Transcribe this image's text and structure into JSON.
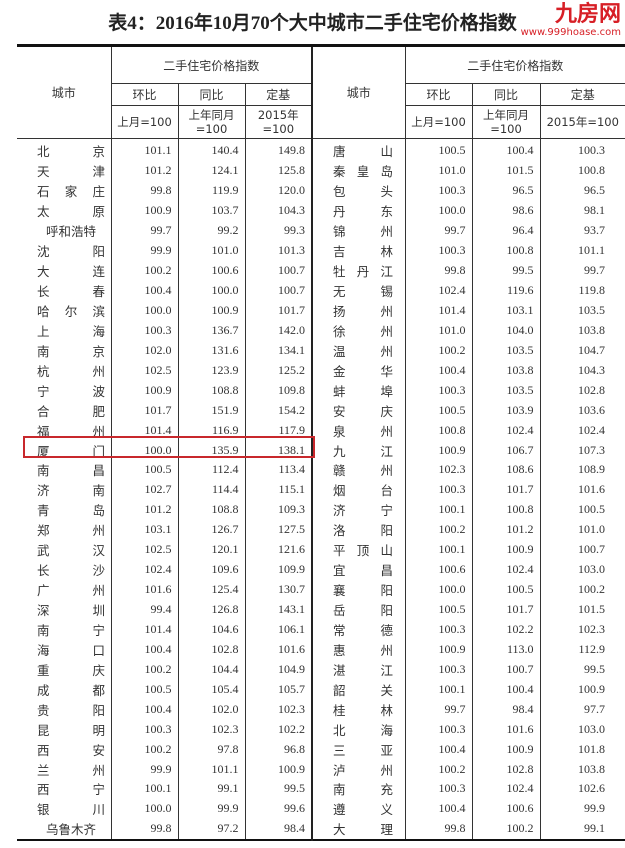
{
  "title": "表4：2016年10月70个大中城市二手住宅价格指数",
  "header": {
    "city": "城市",
    "group": "二手住宅价格指数",
    "cols": [
      "环比",
      "同比",
      "定基"
    ],
    "bases": [
      "上月=100",
      "上年同月=100",
      "2015年=100"
    ]
  },
  "highlight_color": "#c8282c",
  "highlighted_city": "厦门",
  "left": [
    {
      "city": [
        "北",
        "京"
      ],
      "hb": "101.1",
      "tb": "140.4",
      "dj": "149.8"
    },
    {
      "city": [
        "天",
        "津"
      ],
      "hb": "101.2",
      "tb": "124.1",
      "dj": "125.8"
    },
    {
      "city": [
        "石",
        "家",
        "庄"
      ],
      "hb": "99.8",
      "tb": "119.9",
      "dj": "120.0"
    },
    {
      "city": [
        "太",
        "原"
      ],
      "hb": "100.9",
      "tb": "103.7",
      "dj": "104.3"
    },
    {
      "city": [
        "呼和浩特"
      ],
      "hb": "99.7",
      "tb": "99.2",
      "dj": "99.3"
    },
    {
      "city": [
        "沈",
        "阳"
      ],
      "hb": "99.9",
      "tb": "101.0",
      "dj": "101.3"
    },
    {
      "city": [
        "大",
        "连"
      ],
      "hb": "100.2",
      "tb": "100.6",
      "dj": "100.7"
    },
    {
      "city": [
        "长",
        "春"
      ],
      "hb": "100.4",
      "tb": "100.0",
      "dj": "100.7"
    },
    {
      "city": [
        "哈",
        "尔",
        "滨"
      ],
      "hb": "100.0",
      "tb": "100.9",
      "dj": "101.7"
    },
    {
      "city": [
        "上",
        "海"
      ],
      "hb": "100.3",
      "tb": "136.7",
      "dj": "142.0"
    },
    {
      "city": [
        "南",
        "京"
      ],
      "hb": "102.0",
      "tb": "131.6",
      "dj": "134.1"
    },
    {
      "city": [
        "杭",
        "州"
      ],
      "hb": "102.5",
      "tb": "123.9",
      "dj": "125.2"
    },
    {
      "city": [
        "宁",
        "波"
      ],
      "hb": "100.9",
      "tb": "108.8",
      "dj": "109.8"
    },
    {
      "city": [
        "合",
        "肥"
      ],
      "hb": "101.7",
      "tb": "151.9",
      "dj": "154.2"
    },
    {
      "city": [
        "福",
        "州"
      ],
      "hb": "101.4",
      "tb": "116.9",
      "dj": "117.9"
    },
    {
      "city": [
        "厦",
        "门"
      ],
      "hb": "100.0",
      "tb": "135.9",
      "dj": "138.1"
    },
    {
      "city": [
        "南",
        "昌"
      ],
      "hb": "100.5",
      "tb": "112.4",
      "dj": "113.4"
    },
    {
      "city": [
        "济",
        "南"
      ],
      "hb": "102.7",
      "tb": "114.4",
      "dj": "115.1"
    },
    {
      "city": [
        "青",
        "岛"
      ],
      "hb": "101.2",
      "tb": "108.8",
      "dj": "109.3"
    },
    {
      "city": [
        "郑",
        "州"
      ],
      "hb": "103.1",
      "tb": "126.7",
      "dj": "127.5"
    },
    {
      "city": [
        "武",
        "汉"
      ],
      "hb": "102.5",
      "tb": "120.1",
      "dj": "121.6"
    },
    {
      "city": [
        "长",
        "沙"
      ],
      "hb": "102.4",
      "tb": "109.6",
      "dj": "109.9"
    },
    {
      "city": [
        "广",
        "州"
      ],
      "hb": "101.6",
      "tb": "125.4",
      "dj": "130.7"
    },
    {
      "city": [
        "深",
        "圳"
      ],
      "hb": "99.4",
      "tb": "126.8",
      "dj": "143.1"
    },
    {
      "city": [
        "南",
        "宁"
      ],
      "hb": "101.4",
      "tb": "104.6",
      "dj": "106.1"
    },
    {
      "city": [
        "海",
        "口"
      ],
      "hb": "100.4",
      "tb": "102.8",
      "dj": "101.6"
    },
    {
      "city": [
        "重",
        "庆"
      ],
      "hb": "100.2",
      "tb": "104.4",
      "dj": "104.9"
    },
    {
      "city": [
        "成",
        "都"
      ],
      "hb": "100.5",
      "tb": "105.4",
      "dj": "105.7"
    },
    {
      "city": [
        "贵",
        "阳"
      ],
      "hb": "100.4",
      "tb": "102.0",
      "dj": "102.3"
    },
    {
      "city": [
        "昆",
        "明"
      ],
      "hb": "100.3",
      "tb": "102.3",
      "dj": "102.2"
    },
    {
      "city": [
        "西",
        "安"
      ],
      "hb": "100.2",
      "tb": "97.8",
      "dj": "96.8"
    },
    {
      "city": [
        "兰",
        "州"
      ],
      "hb": "99.9",
      "tb": "101.1",
      "dj": "100.9"
    },
    {
      "city": [
        "西",
        "宁"
      ],
      "hb": "100.1",
      "tb": "99.1",
      "dj": "99.5"
    },
    {
      "city": [
        "银",
        "川"
      ],
      "hb": "100.0",
      "tb": "99.9",
      "dj": "99.6"
    },
    {
      "city": [
        "乌鲁木齐"
      ],
      "hb": "99.8",
      "tb": "97.2",
      "dj": "98.4"
    }
  ],
  "right": [
    {
      "city": [
        "唐",
        "山"
      ],
      "hb": "100.5",
      "tb": "100.4",
      "dj": "100.3"
    },
    {
      "city": [
        "秦",
        "皇",
        "岛"
      ],
      "hb": "101.0",
      "tb": "101.5",
      "dj": "100.8"
    },
    {
      "city": [
        "包",
        "头"
      ],
      "hb": "100.3",
      "tb": "96.5",
      "dj": "96.5"
    },
    {
      "city": [
        "丹",
        "东"
      ],
      "hb": "100.0",
      "tb": "98.6",
      "dj": "98.1"
    },
    {
      "city": [
        "锦",
        "州"
      ],
      "hb": "99.7",
      "tb": "96.4",
      "dj": "93.7"
    },
    {
      "city": [
        "吉",
        "林"
      ],
      "hb": "100.3",
      "tb": "100.8",
      "dj": "101.1"
    },
    {
      "city": [
        "牡",
        "丹",
        "江"
      ],
      "hb": "99.8",
      "tb": "99.5",
      "dj": "99.7"
    },
    {
      "city": [
        "无",
        "锡"
      ],
      "hb": "102.4",
      "tb": "119.6",
      "dj": "119.8"
    },
    {
      "city": [
        "扬",
        "州"
      ],
      "hb": "101.4",
      "tb": "103.1",
      "dj": "103.5"
    },
    {
      "city": [
        "徐",
        "州"
      ],
      "hb": "101.0",
      "tb": "104.0",
      "dj": "103.8"
    },
    {
      "city": [
        "温",
        "州"
      ],
      "hb": "100.2",
      "tb": "103.5",
      "dj": "104.7"
    },
    {
      "city": [
        "金",
        "华"
      ],
      "hb": "100.4",
      "tb": "103.8",
      "dj": "104.3"
    },
    {
      "city": [
        "蚌",
        "埠"
      ],
      "hb": "100.3",
      "tb": "103.5",
      "dj": "102.8"
    },
    {
      "city": [
        "安",
        "庆"
      ],
      "hb": "100.5",
      "tb": "103.9",
      "dj": "103.6"
    },
    {
      "city": [
        "泉",
        "州"
      ],
      "hb": "100.8",
      "tb": "102.4",
      "dj": "102.4"
    },
    {
      "city": [
        "九",
        "江"
      ],
      "hb": "100.9",
      "tb": "106.7",
      "dj": "107.3"
    },
    {
      "city": [
        "赣",
        "州"
      ],
      "hb": "102.3",
      "tb": "108.6",
      "dj": "108.9"
    },
    {
      "city": [
        "烟",
        "台"
      ],
      "hb": "100.3",
      "tb": "101.7",
      "dj": "101.6"
    },
    {
      "city": [
        "济",
        "宁"
      ],
      "hb": "100.1",
      "tb": "100.8",
      "dj": "100.5"
    },
    {
      "city": [
        "洛",
        "阳"
      ],
      "hb": "100.2",
      "tb": "101.2",
      "dj": "101.0"
    },
    {
      "city": [
        "平",
        "顶",
        "山"
      ],
      "hb": "100.1",
      "tb": "100.9",
      "dj": "100.7"
    },
    {
      "city": [
        "宜",
        "昌"
      ],
      "hb": "100.6",
      "tb": "102.4",
      "dj": "103.0"
    },
    {
      "city": [
        "襄",
        "阳"
      ],
      "hb": "100.0",
      "tb": "100.5",
      "dj": "100.2"
    },
    {
      "city": [
        "岳",
        "阳"
      ],
      "hb": "100.5",
      "tb": "101.7",
      "dj": "101.5"
    },
    {
      "city": [
        "常",
        "德"
      ],
      "hb": "100.3",
      "tb": "102.2",
      "dj": "102.3"
    },
    {
      "city": [
        "惠",
        "州"
      ],
      "hb": "100.9",
      "tb": "113.0",
      "dj": "112.9"
    },
    {
      "city": [
        "湛",
        "江"
      ],
      "hb": "100.3",
      "tb": "100.7",
      "dj": "99.5"
    },
    {
      "city": [
        "韶",
        "关"
      ],
      "hb": "100.1",
      "tb": "100.4",
      "dj": "100.9"
    },
    {
      "city": [
        "桂",
        "林"
      ],
      "hb": "99.7",
      "tb": "98.4",
      "dj": "97.7"
    },
    {
      "city": [
        "北",
        "海"
      ],
      "hb": "100.3",
      "tb": "101.6",
      "dj": "103.0"
    },
    {
      "city": [
        "三",
        "亚"
      ],
      "hb": "100.4",
      "tb": "100.9",
      "dj": "101.8"
    },
    {
      "city": [
        "泸",
        "州"
      ],
      "hb": "100.2",
      "tb": "102.8",
      "dj": "103.8"
    },
    {
      "city": [
        "南",
        "充"
      ],
      "hb": "100.3",
      "tb": "102.4",
      "dj": "102.6"
    },
    {
      "city": [
        "遵",
        "义"
      ],
      "hb": "100.4",
      "tb": "100.6",
      "dj": "99.9"
    },
    {
      "city": [
        "大",
        "理"
      ],
      "hb": "99.8",
      "tb": "100.2",
      "dj": "99.1"
    }
  ],
  "watermark": {
    "logo": "九房网",
    "url": "www.999hoase.com"
  }
}
